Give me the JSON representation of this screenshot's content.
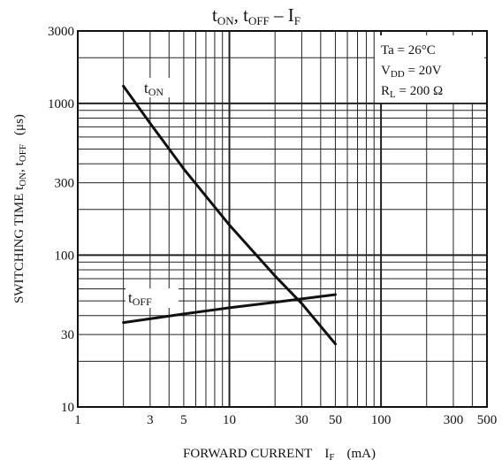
{
  "chart_data": {
    "type": "line",
    "title": {
      "t1": "t",
      "s1": "ON",
      "sep1": ", t",
      "s2": "OFF",
      "sep2": " – I",
      "s3": "F"
    },
    "xlabel": {
      "text": "FORWARD CURRENT",
      "var": "I",
      "sub": "F",
      "unit": "(mA)"
    },
    "ylabel": {
      "text": "SWITCHING TIME t",
      "s1": "ON",
      "mid": ", t",
      "s2": "OFF",
      "unit": "(μs)"
    },
    "x_scale": "log",
    "y_scale": "log",
    "xlim": [
      1,
      500
    ],
    "ylim": [
      10,
      3000
    ],
    "x_ticks": [
      {
        "value": 1,
        "label": "1"
      },
      {
        "value": 3,
        "label": "3"
      },
      {
        "value": 5,
        "label": "5"
      },
      {
        "value": 10,
        "label": "10"
      },
      {
        "value": 30,
        "label": "30"
      },
      {
        "value": 50,
        "label": "50"
      },
      {
        "value": 100,
        "label": "100"
      },
      {
        "value": 300,
        "label": "300"
      },
      {
        "value": 500,
        "label": "500"
      }
    ],
    "y_ticks": [
      {
        "value": 10,
        "label": "10"
      },
      {
        "value": 30,
        "label": "30"
      },
      {
        "value": 100,
        "label": "100"
      },
      {
        "value": 300,
        "label": "300"
      },
      {
        "value": 1000,
        "label": "1000"
      },
      {
        "value": 3000,
        "label": "3000"
      }
    ],
    "grid": true,
    "legend": {
      "placement": "top-right",
      "lines": [
        {
          "text": "Ta = 26°C"
        },
        {
          "pre": "V",
          "sub": "DD",
          "post": " = 20V"
        },
        {
          "pre": "R",
          "sub": "L",
          "post": " = 200 Ω"
        }
      ]
    },
    "series": [
      {
        "name": "t",
        "sub": "ON",
        "x": [
          2,
          3,
          5,
          10,
          20,
          30,
          50
        ],
        "y": [
          1300,
          740,
          370,
          158,
          73,
          48,
          26
        ]
      },
      {
        "name": "t",
        "sub": "OFF",
        "x": [
          2,
          5,
          10,
          20,
          50
        ],
        "y": [
          36,
          41,
          45,
          49,
          55
        ]
      }
    ]
  }
}
